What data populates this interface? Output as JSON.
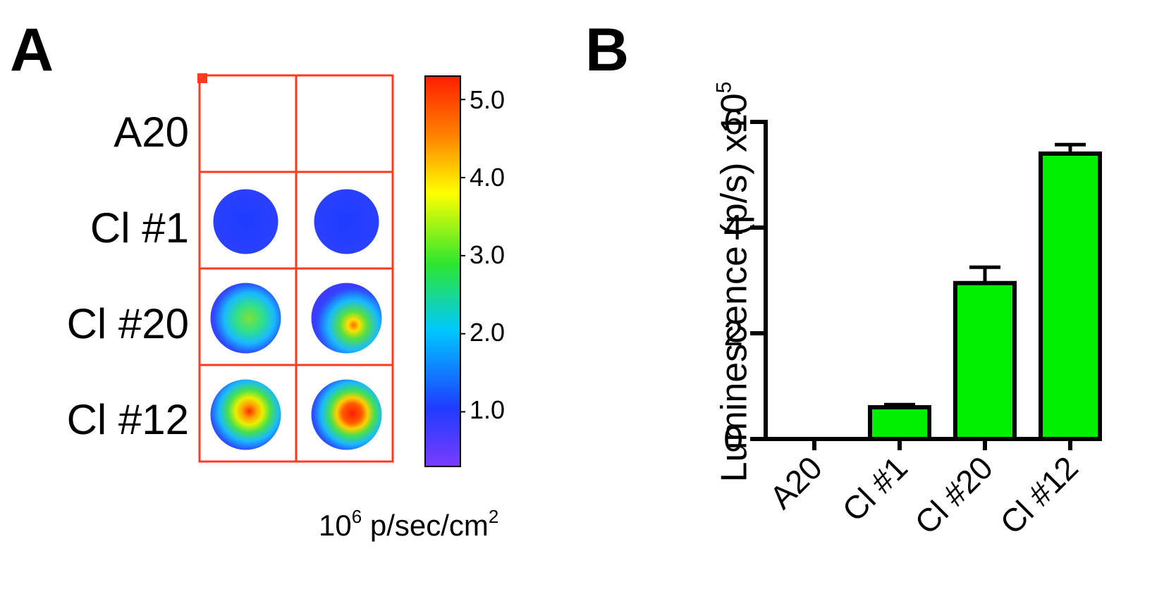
{
  "panelA": {
    "letter": "A",
    "rows": [
      "A20",
      "Cl #1",
      "Cl #20",
      "Cl #12"
    ],
    "colorbar": {
      "ticks": [
        "5.0",
        "4.0",
        "3.0",
        "2.0",
        "1.0"
      ],
      "tick_values": [
        5.0,
        4.0,
        3.0,
        2.0,
        1.0
      ],
      "range": [
        0.3,
        5.3
      ],
      "unit_base": "10",
      "unit_exp": "6",
      "unit_rest": " p/sec/cm",
      "unit_exp2": "2",
      "colors": [
        "#7a3cff",
        "#1f3cff",
        "#00c8ff",
        "#2ee62e",
        "#ffff00",
        "#ff8000",
        "#ff1e00"
      ]
    },
    "grid_color": "#ff3b1f",
    "well_intensity": [
      [
        0,
        0
      ],
      [
        1.0,
        1.0
      ],
      [
        2.4,
        2.6
      ],
      [
        3.9,
        4.1
      ]
    ]
  },
  "panelB": {
    "letter": "B"
  },
  "chart_data": {
    "type": "bar",
    "categories": [
      "A20",
      "Cl #1",
      "Cl #20",
      "Cl #12"
    ],
    "values": [
      0.0,
      0.6,
      2.95,
      5.4
    ],
    "errors": [
      0.0,
      0.05,
      0.3,
      0.17
    ],
    "ylabel_main": "Luminescence (p/s) x10",
    "ylabel_exp": "5",
    "ylim": [
      0,
      6
    ],
    "yticks": [
      0,
      2,
      4,
      6
    ],
    "ytick_labels": [
      "0",
      "2",
      "4",
      "6"
    ],
    "bar_color": "#00ee00",
    "grid": false
  }
}
